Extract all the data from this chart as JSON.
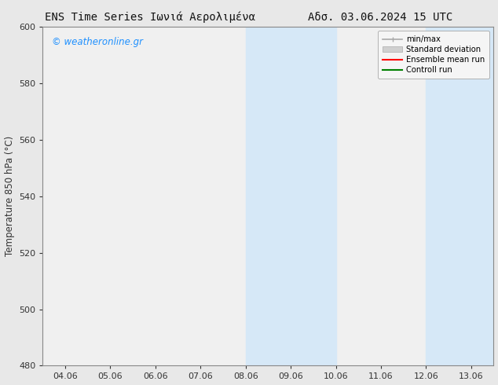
{
  "title_left": "ENS Time Series Ιωνιά Αερολιμένα",
  "title_right": "Αδσ. 03.06.2024 15 UTC",
  "ylabel": "Temperature 850 hPa (°C)",
  "xlabel_ticks": [
    "04.06",
    "05.06",
    "06.06",
    "07.06",
    "08.06",
    "09.06",
    "10.06",
    "11.06",
    "12.06",
    "13.06"
  ],
  "ylim": [
    480,
    600
  ],
  "yticks": [
    480,
    500,
    520,
    540,
    560,
    580,
    600
  ],
  "bg_color": "#e8e8e8",
  "plot_bg_color": "#f0f0f0",
  "shaded_regions": [
    {
      "xmin": 4.0,
      "xmax": 6.0,
      "color": "#d6e8f7"
    },
    {
      "xmin": 8.0,
      "xmax": 9.5,
      "color": "#d6e8f7"
    }
  ],
  "watermark_text": "© weatheronline.gr",
  "watermark_color": "#1e90ff",
  "spine_color": "#888888",
  "tick_color": "#333333",
  "title_fontsize": 10,
  "label_fontsize": 8.5,
  "tick_fontsize": 8
}
